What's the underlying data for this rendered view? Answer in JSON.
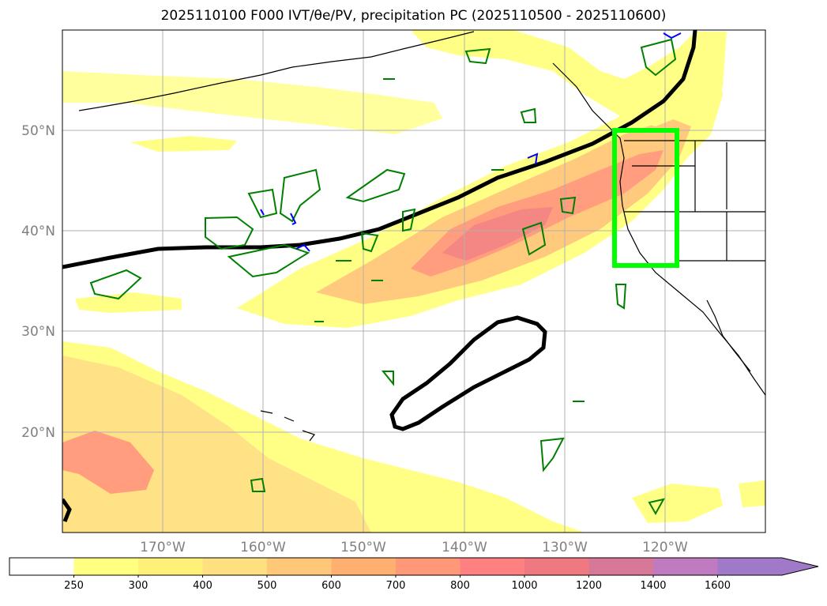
{
  "title": "2025110100 F000 IVT/θe/PV, precipitation PC (2025110500 - 2025110600)",
  "map": {
    "lat_labels": [
      "50°N",
      "40°N",
      "30°N",
      "20°N"
    ],
    "lon_labels": [
      "170°W",
      "160°W",
      "150°W",
      "140°W",
      "130°W",
      "120°W"
    ],
    "lat_range": [
      10,
      60
    ],
    "lon_range": [
      -180,
      -110
    ],
    "box_color": "#00ff00",
    "contour_colors": {
      "theta_e": "#000000",
      "pv_positive": "#008000",
      "pv_negative": "#0000ff"
    }
  },
  "colorbar": {
    "levels": [
      "250",
      "300",
      "400",
      "500",
      "600",
      "700",
      "800",
      "1000",
      "1200",
      "1400",
      "1600"
    ],
    "colors": [
      "#ffffff",
      "#ffff80",
      "#fff07a",
      "#ffe080",
      "#ffc878",
      "#ffb070",
      "#ff9878",
      "#ff8080",
      "#f07880",
      "#d87898",
      "#c07ac0",
      "#a07ac8"
    ],
    "extend": "max"
  }
}
